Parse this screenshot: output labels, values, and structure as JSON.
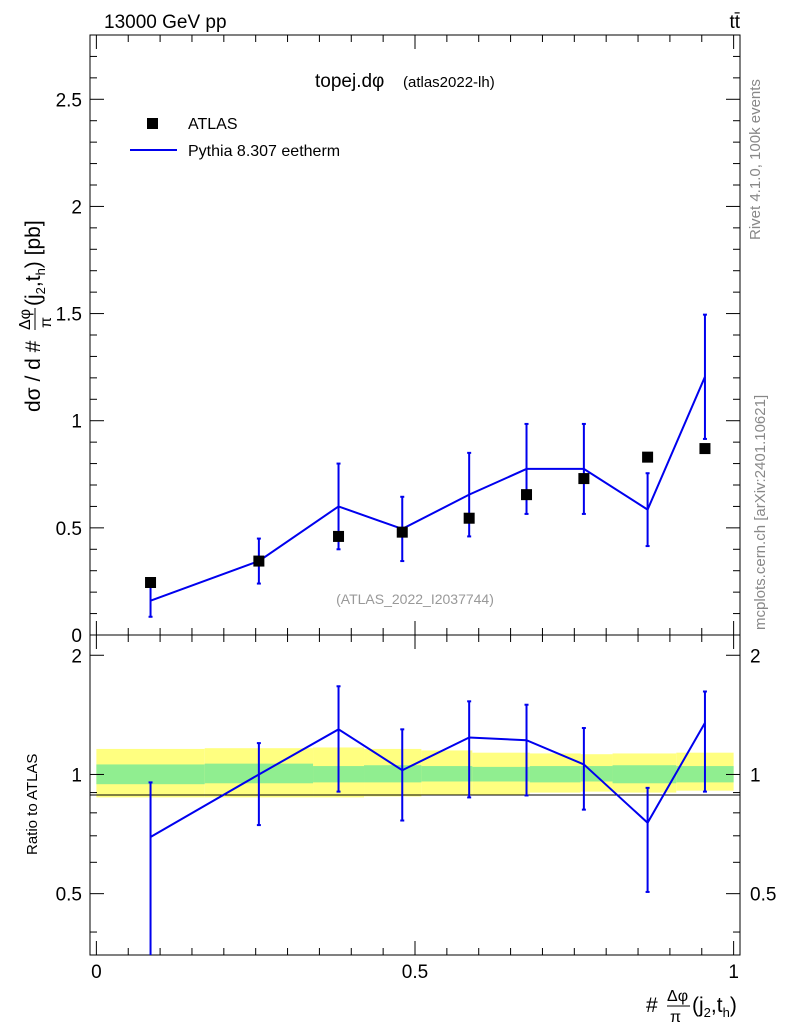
{
  "header": {
    "energy_label": "13000 GeV pp",
    "process_label": "tt̄"
  },
  "side_labels": {
    "rivet": "Rivet 4.1.0,  100k events",
    "mcplots": "mcplots.cern.ch [arXiv:2401.10621]"
  },
  "colors": {
    "mc": "#0000ee",
    "data": "#000000",
    "band_inner": "#90ee90",
    "band_outer": "#ffff80",
    "watermark": "#999999"
  },
  "chart_data": [
    {
      "type": "scatter",
      "panel": "main",
      "title": "topej.dφ",
      "title_suffix": "(atlas2022-lh)",
      "watermark": "(ATLAS_2022_I2037744)",
      "ylabel": "dσ / d #Δφπ(j2,th) [pb]",
      "ylim": [
        0,
        2.8
      ],
      "yticks": [
        0,
        0.5,
        1,
        1.5,
        2,
        2.5
      ],
      "ytick_labels": [
        "0",
        "0.5",
        "1",
        "1.5",
        "2",
        "2.5"
      ],
      "legend": [
        "ATLAS",
        "Pythia 8.307 eetherm"
      ],
      "series": [
        {
          "name": "ATLAS",
          "x": [
            0.085,
            0.255,
            0.38,
            0.48,
            0.585,
            0.675,
            0.765,
            0.865,
            0.955
          ],
          "y": [
            0.245,
            0.345,
            0.46,
            0.48,
            0.545,
            0.655,
            0.73,
            0.83,
            0.87
          ]
        },
        {
          "name": "Pythia 8.307 eetherm",
          "x": [
            0.085,
            0.255,
            0.38,
            0.48,
            0.585,
            0.675,
            0.765,
            0.865,
            0.955
          ],
          "y": [
            0.16,
            0.345,
            0.6,
            0.495,
            0.655,
            0.775,
            0.775,
            0.585,
            1.205
          ],
          "yerr": [
            0.075,
            0.105,
            0.2,
            0.15,
            0.195,
            0.21,
            0.21,
            0.17,
            0.29
          ]
        }
      ]
    },
    {
      "type": "line",
      "panel": "ratio",
      "xlabel": "#Δφπ(j2,th)",
      "ylabel": "Ratio to ATLAS",
      "ylim": [
        0.35,
        2.25
      ],
      "xlim": [
        -0.01,
        1.01
      ],
      "xticks": [
        0,
        0.5,
        1
      ],
      "xtick_labels": [
        "0",
        "0.5",
        "1"
      ],
      "yticks": [
        0.5,
        1,
        2
      ],
      "ytick_labels": [
        "0.5",
        "1",
        "2"
      ],
      "series": [
        {
          "name": "Pythia 8.307 eetherm",
          "x": [
            0.085,
            0.255,
            0.38,
            0.48,
            0.585,
            0.675,
            0.765,
            0.865,
            0.955
          ],
          "y": [
            0.695,
            1.0,
            1.3,
            1.025,
            1.24,
            1.22,
            1.06,
            0.755,
            1.35
          ],
          "ylow": [
            0.0,
            0.745,
            0.905,
            0.765,
            0.875,
            0.885,
            0.815,
            0.505,
            0.905
          ],
          "yhigh": [
            0.955,
            1.2,
            1.67,
            1.3,
            1.53,
            1.5,
            1.31,
            0.925,
            1.62
          ]
        }
      ],
      "uncertainty_bands": {
        "edges": [
          0,
          0.17,
          0.34,
          0.42,
          0.51,
          0.59,
          0.68,
          0.76,
          0.81,
          0.91,
          1.0
        ],
        "inner_low": [
          0.945,
          0.95,
          0.955,
          0.955,
          0.96,
          0.96,
          0.955,
          0.96,
          0.95,
          0.955
        ],
        "inner_high": [
          1.06,
          1.065,
          1.05,
          1.055,
          1.05,
          1.045,
          1.05,
          1.05,
          1.055,
          1.05
        ],
        "outer_low": [
          0.875,
          0.875,
          0.875,
          0.88,
          0.885,
          0.89,
          0.9,
          0.905,
          0.9,
          0.91
        ],
        "outer_high": [
          1.16,
          1.165,
          1.17,
          1.16,
          1.15,
          1.135,
          1.13,
          1.125,
          1.13,
          1.135
        ]
      }
    }
  ]
}
